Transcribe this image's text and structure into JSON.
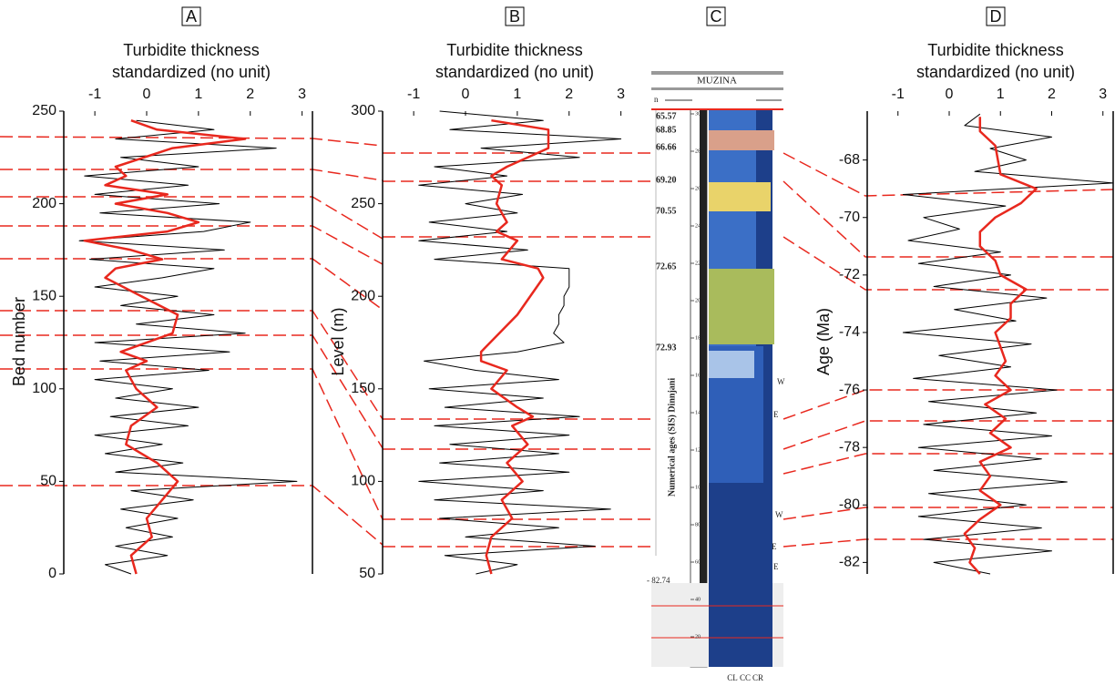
{
  "chart_data": [
    {
      "type": "line",
      "panel": "A",
      "title": [
        "Turbidite thickness",
        "standardized (no unit)"
      ],
      "ylabel": "Bed number",
      "xlim": [
        -1.6,
        3.2
      ],
      "xticks": [
        -1,
        0,
        1,
        2,
        3
      ],
      "ylim": [
        0,
        250
      ],
      "yticks": [
        0,
        50,
        100,
        150,
        200,
        250
      ],
      "series": [
        {
          "color": "#000000",
          "levels": [
            0,
            5,
            10,
            15,
            20,
            25,
            30,
            35,
            40,
            45,
            50,
            55,
            60,
            65,
            70,
            75,
            80,
            85,
            90,
            95,
            100,
            105,
            110,
            115,
            120,
            125,
            130,
            135,
            140,
            145,
            150,
            155,
            160,
            165,
            170,
            175,
            180,
            185,
            190,
            195,
            200,
            205,
            210,
            215,
            220,
            225,
            230,
            235,
            240,
            245
          ],
          "values": [
            -0.3,
            -0.8,
            0.4,
            -0.6,
            0.5,
            -0.4,
            0.6,
            -0.5,
            0.9,
            -0.3,
            2.9,
            -0.6,
            0.7,
            -0.8,
            0.3,
            -1.0,
            0.8,
            -0.7,
            1.0,
            -0.6,
            0.5,
            -1.0,
            1.2,
            -0.9,
            1.6,
            -1.0,
            1.9,
            -0.2,
            1.3,
            -0.5,
            0.6,
            -1.0,
            0.3,
            1.3,
            -1.1,
            1.5,
            -1.3,
            1.1,
            2.0,
            -0.9,
            1.4,
            -1.0,
            0.8,
            -1.2,
            1.0,
            -0.5,
            2.5,
            -0.6,
            1.3,
            -0.2
          ]
        },
        {
          "color": "#e8281e",
          "levels": [
            0,
            10,
            20,
            30,
            40,
            50,
            60,
            70,
            80,
            90,
            100,
            110,
            115,
            120,
            130,
            140,
            150,
            160,
            165,
            170,
            175,
            180,
            185,
            190,
            195,
            200,
            205,
            210,
            215,
            220,
            230,
            235,
            240,
            245
          ],
          "values": [
            -0.2,
            -0.3,
            0.1,
            0.0,
            0.3,
            0.6,
            0.2,
            -0.4,
            -0.3,
            0.2,
            -0.2,
            -0.4,
            0.0,
            -0.5,
            0.5,
            0.6,
            -0.1,
            -0.8,
            -0.6,
            0.3,
            -0.3,
            -1.2,
            0.4,
            1.0,
            0.4,
            -0.6,
            0.4,
            -0.8,
            -0.4,
            -0.6,
            0.5,
            1.9,
            0.2,
            -0.3
          ]
        }
      ]
    },
    {
      "type": "line",
      "panel": "B",
      "title": [
        "Turbidite thickness",
        "standardized (no unit)"
      ],
      "ylabel": "Level (m)",
      "xlim": [
        -1.6,
        3.2
      ],
      "xticks": [
        -1,
        0,
        1,
        2,
        3
      ],
      "ylim": [
        50,
        300
      ],
      "yticks": [
        50,
        100,
        150,
        200,
        250,
        300
      ],
      "series": [
        {
          "color": "#000000",
          "levels": [
            50,
            55,
            60,
            65,
            70,
            75,
            80,
            85,
            90,
            95,
            100,
            105,
            110,
            115,
            120,
            125,
            130,
            135,
            140,
            145,
            150,
            155,
            160,
            165,
            170,
            175,
            180,
            185,
            190,
            195,
            200,
            205,
            210,
            215,
            220,
            225,
            230,
            235,
            240,
            245,
            250,
            255,
            260,
            265,
            270,
            275,
            280,
            285,
            290,
            295,
            300
          ],
          "values": [
            0.2,
            1.0,
            -0.4,
            2.5,
            0.0,
            1.8,
            -0.5,
            2.8,
            -0.6,
            1.5,
            -0.9,
            2.0,
            -0.5,
            1.8,
            -0.3,
            2.0,
            -0.6,
            2.2,
            -0.4,
            1.5,
            -0.7,
            1.8,
            0.2,
            -0.8,
            1.0,
            1.9,
            1.7,
            1.8,
            1.8,
            1.9,
            1.9,
            2.0,
            2.0,
            2.0,
            -0.6,
            1.2,
            -0.9,
            0.8,
            -0.7,
            1.0,
            0.0,
            1.1,
            -0.9,
            0.8,
            -0.6,
            2.2,
            0.3,
            3.0,
            -0.3,
            1.5,
            -0.5
          ]
        },
        {
          "color": "#e8281e",
          "levels": [
            50,
            60,
            70,
            80,
            90,
            100,
            110,
            120,
            130,
            135,
            140,
            150,
            160,
            165,
            170,
            190,
            210,
            215,
            220,
            230,
            235,
            240,
            250,
            260,
            265,
            270,
            280,
            290,
            295
          ],
          "values": [
            0.5,
            0.4,
            0.5,
            0.9,
            0.7,
            1.1,
            0.8,
            1.2,
            0.9,
            1.3,
            1.0,
            0.5,
            0.8,
            0.3,
            0.3,
            1.0,
            1.5,
            1.4,
            0.7,
            1.0,
            0.6,
            0.8,
            0.6,
            0.7,
            0.5,
            0.8,
            1.6,
            1.6,
            0.5
          ]
        }
      ]
    },
    {
      "type": "line",
      "panel": "D",
      "title": [
        "Turbidite thickness",
        "standardized (no unit)"
      ],
      "ylabel": "Age (Ma)",
      "xlim": [
        -1.6,
        3.2
      ],
      "xticks": [
        -1,
        0,
        1,
        2,
        3
      ],
      "ylim": [
        -82.4,
        -66.3
      ],
      "yticks": [
        -68,
        -70,
        -72,
        -74,
        -76,
        -78,
        -80,
        -82
      ],
      "series": [
        {
          "color": "#000000",
          "levels": [
            -82.4,
            -82.0,
            -81.6,
            -81.2,
            -80.8,
            -80.4,
            -80.0,
            -79.6,
            -79.2,
            -78.8,
            -78.4,
            -78.0,
            -77.6,
            -77.2,
            -76.8,
            -76.4,
            -76.0,
            -75.6,
            -75.2,
            -74.8,
            -74.4,
            -74.0,
            -73.6,
            -73.2,
            -72.8,
            -72.4,
            -72.0,
            -71.6,
            -71.2,
            -70.8,
            -70.4,
            -70.0,
            -69.6,
            -69.2,
            -68.8,
            -68.4,
            -68.0,
            -67.6,
            -67.2,
            -66.8,
            -66.4
          ],
          "values": [
            0.8,
            -0.3,
            2.0,
            -0.5,
            1.8,
            -0.6,
            1.5,
            -0.4,
            2.3,
            -0.3,
            1.8,
            -0.6,
            2.0,
            -0.5,
            1.7,
            -0.4,
            2.1,
            -0.7,
            1.2,
            -0.2,
            1.6,
            -0.9,
            1.3,
            0.1,
            1.9,
            -0.3,
            1.2,
            -0.6,
            1.0,
            -0.8,
            0.2,
            -0.5,
            1.1,
            -0.9,
            3.2,
            0.5,
            1.5,
            0.8,
            2.0,
            0.3,
            0.6
          ]
        },
        {
          "color": "#e8281e",
          "levels": [
            -82.4,
            -82.0,
            -81.5,
            -81.0,
            -80.5,
            -80.0,
            -79.5,
            -79.0,
            -78.5,
            -78.0,
            -77.5,
            -77.0,
            -76.5,
            -76.0,
            -75.5,
            -75.0,
            -74.5,
            -74.0,
            -73.5,
            -73.0,
            -72.5,
            -72.0,
            -71.5,
            -71.0,
            -70.5,
            -70.0,
            -69.5,
            -69.0,
            -68.5,
            -67.5,
            -67.0,
            -66.5
          ],
          "values": [
            0.6,
            0.4,
            0.5,
            0.3,
            0.6,
            1.0,
            0.6,
            0.8,
            0.6,
            1.2,
            0.8,
            1.1,
            0.7,
            1.2,
            0.9,
            1.1,
            1.0,
            0.9,
            1.2,
            1.2,
            1.5,
            1.0,
            0.9,
            0.6,
            0.6,
            0.9,
            1.4,
            1.7,
            1.0,
            0.9,
            0.6,
            0.6
          ]
        }
      ]
    }
  ],
  "column": {
    "panel": "C",
    "name": "MUZINA",
    "top_mark": "n",
    "ages": [
      "65.57",
      "68.85",
      "66.66",
      "69.20",
      "70.55",
      "72.65",
      "72.93",
      "- 82.74"
    ],
    "side_label": "Numerical ages (SIS) Dinnjani",
    "scale": [
      300,
      280,
      260,
      240,
      220,
      200,
      180,
      160,
      140,
      120,
      100,
      80,
      60,
      40,
      20
    ],
    "arrows": [
      "W",
      "E",
      "W",
      "E",
      "E"
    ],
    "grain": [
      "CL",
      "CC",
      "CR"
    ]
  }
}
